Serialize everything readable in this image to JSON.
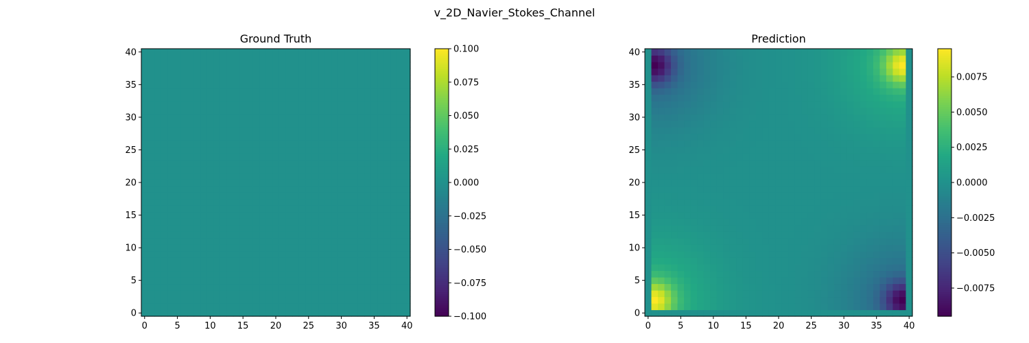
{
  "figure": {
    "suptitle": "v_2D_Navier_Stokes_Channel"
  },
  "chart_data": [
    {
      "type": "heatmap",
      "title": "Ground Truth",
      "xlabel": "",
      "ylabel": "",
      "xlim": [
        -0.5,
        40.5
      ],
      "ylim": [
        -0.5,
        40.5
      ],
      "xticks": [
        0,
        5,
        10,
        15,
        20,
        25,
        30,
        35,
        40
      ],
      "yticks": [
        0,
        5,
        10,
        15,
        20,
        25,
        30,
        35,
        40
      ],
      "grid_size": 41,
      "origin": "lower",
      "field": {
        "kind": "constant",
        "value": 0.0
      },
      "colorbar": {
        "vmin": -0.1,
        "vmax": 0.1,
        "ticks": [
          -0.1,
          -0.075,
          -0.05,
          -0.025,
          0.0,
          0.025,
          0.05,
          0.075,
          0.1
        ],
        "tick_labels": [
          "−0.100",
          "−0.075",
          "−0.050",
          "−0.025",
          "0.000",
          "0.025",
          "0.050",
          "0.075",
          "0.100"
        ]
      },
      "colormap": "viridis",
      "grid": false
    },
    {
      "type": "heatmap",
      "title": "Prediction",
      "xlabel": "",
      "ylabel": "",
      "xlim": [
        -0.5,
        40.5
      ],
      "ylim": [
        -0.5,
        40.5
      ],
      "xticks": [
        0,
        5,
        10,
        15,
        20,
        25,
        30,
        35,
        40
      ],
      "yticks": [
        0,
        5,
        10,
        15,
        20,
        25,
        30,
        35,
        40
      ],
      "grid_size": 41,
      "origin": "lower",
      "field": {
        "kind": "approximate_blobs",
        "active_columns": [
          1,
          39
        ],
        "active_rows": [
          1,
          40
        ],
        "extrema": [
          {
            "corner": "bottom-left",
            "x": 1,
            "y": 2,
            "value": 0.0095
          },
          {
            "corner": "top-right",
            "x": 39,
            "y": 38,
            "value": 0.0095
          },
          {
            "corner": "top-left",
            "x": 1,
            "y": 38,
            "value": -0.0095
          },
          {
            "corner": "bottom-right",
            "x": 39,
            "y": 2,
            "value": -0.0095
          }
        ]
      },
      "colorbar": {
        "vmin": -0.0095,
        "vmax": 0.0095,
        "ticks": [
          -0.0075,
          -0.005,
          -0.0025,
          0.0,
          0.0025,
          0.005,
          0.0075
        ],
        "tick_labels": [
          "−0.0075",
          "−0.0050",
          "−0.0025",
          "0.0000",
          "0.0025",
          "0.0050",
          "0.0075"
        ]
      },
      "colormap": "viridis",
      "grid": false
    }
  ]
}
